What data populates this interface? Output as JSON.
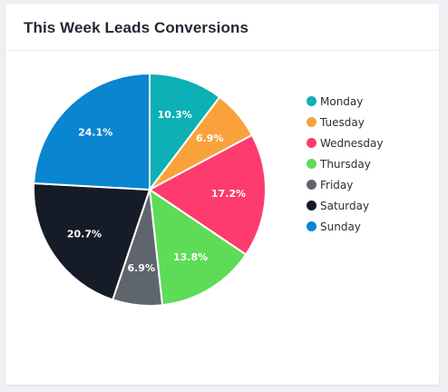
{
  "card": {
    "title": "This Week Leads Conversions"
  },
  "chart_data": {
    "type": "pie",
    "categories": [
      "Monday",
      "Tuesday",
      "Wednesday",
      "Thursday",
      "Friday",
      "Saturday",
      "Sunday"
    ],
    "values": [
      10.3,
      6.9,
      17.2,
      13.8,
      6.9,
      20.7,
      24.1
    ],
    "labels": [
      "10.3%",
      "6.9%",
      "17.2%",
      "13.8%",
      "6.9%",
      "20.7%",
      "24.1%"
    ],
    "colors": [
      "#0db0b4",
      "#f9a23c",
      "#fd3b6e",
      "#5edb57",
      "#5f656c",
      "#161c27",
      "#0a85cf"
    ],
    "legend_position": "right"
  }
}
